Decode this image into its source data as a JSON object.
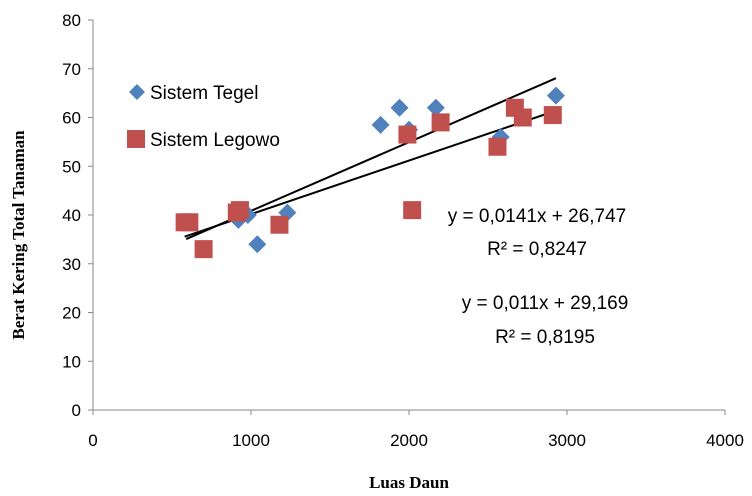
{
  "chart_data": {
    "type": "scatter",
    "xlabel": "Luas Daun",
    "ylabel": "Berat Kering Total Tanaman",
    "xlim": [
      0,
      4000
    ],
    "ylim": [
      0,
      80
    ],
    "xticks": [
      0,
      1000,
      2000,
      3000,
      4000
    ],
    "yticks": [
      0,
      10,
      20,
      30,
      40,
      50,
      60,
      70,
      80
    ],
    "tick_labels_x": [
      "0",
      "1000",
      "2000",
      "3000",
      "4000"
    ],
    "tick_labels_y": [
      "0",
      "10",
      "20",
      "30",
      "40",
      "50",
      "60",
      "70",
      "80"
    ],
    "grid": false,
    "legend_placement": "top-left",
    "series": [
      {
        "name": "Sistem Tegel",
        "marker": "diamond",
        "color": "#4f81bd",
        "points": [
          [
            590,
            38.5
          ],
          [
            920,
            39.0
          ],
          [
            980,
            40.0
          ],
          [
            1040,
            34.0
          ],
          [
            1230,
            40.5
          ],
          [
            1820,
            58.5
          ],
          [
            1940,
            62.0
          ],
          [
            2000,
            57.5
          ],
          [
            2170,
            62.0
          ],
          [
            2580,
            56.0
          ],
          [
            2930,
            64.5
          ]
        ],
        "trendline": {
          "slope": 0.0141,
          "intercept": 26.747,
          "x_range": [
            590,
            2930
          ]
        },
        "equation": "y = 0,0141x + 26,747",
        "r2": "R² = 0,8247"
      },
      {
        "name": "Sistem Legowo",
        "marker": "square",
        "color": "#c0504d",
        "points": [
          [
            580,
            38.5
          ],
          [
            610,
            38.5
          ],
          [
            700,
            33.0
          ],
          [
            910,
            40.5
          ],
          [
            930,
            41.0
          ],
          [
            1180,
            38.0
          ],
          [
            1990,
            56.5
          ],
          [
            2020,
            41.0
          ],
          [
            2200,
            59.0
          ],
          [
            2560,
            54.0
          ],
          [
            2670,
            62.0
          ],
          [
            2720,
            60.0
          ],
          [
            2910,
            60.5
          ]
        ],
        "trendline": {
          "slope": 0.011,
          "intercept": 29.169,
          "x_range": [
            580,
            2910
          ]
        },
        "equation": "y = 0,011x + 29,169",
        "r2": "R² = 0,8195"
      }
    ]
  }
}
